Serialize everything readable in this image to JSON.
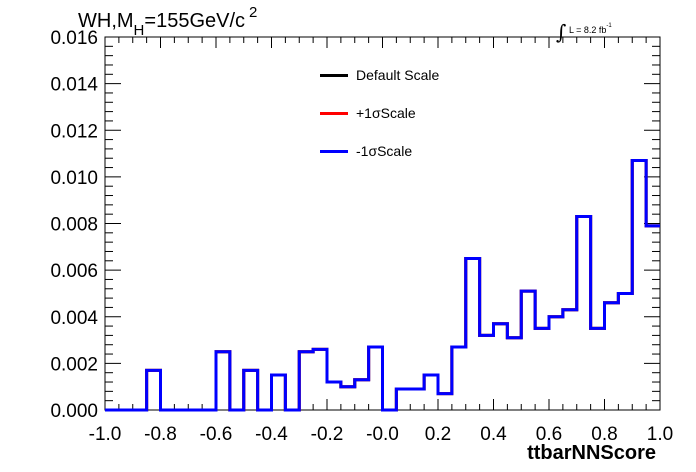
{
  "title": {
    "prefix": "WH,M",
    "subscript": "H",
    "value": "=155GeV/c",
    "superscript": "2"
  },
  "lumi": {
    "integral": "∫",
    "text": "L = 8.2 fb",
    "superscript": "-1"
  },
  "chart_data": {
    "type": "line",
    "xlabel": "ttbarNNScore",
    "ylabel": "",
    "xlim": [
      -1.0,
      1.0
    ],
    "ylim": [
      0.0,
      0.016
    ],
    "x_ticks": [
      "-1.0",
      "-0.8",
      "-0.6",
      "-0.4",
      "-0.2",
      "-0.0",
      "0.2",
      "0.4",
      "0.6",
      "0.8",
      "1.0"
    ],
    "y_ticks": [
      "0.000",
      "0.002",
      "0.004",
      "0.006",
      "0.008",
      "0.010",
      "0.012",
      "0.014",
      "0.016"
    ],
    "bin_edges": [
      -1.0,
      -0.95,
      -0.9,
      -0.85,
      -0.8,
      -0.75,
      -0.7,
      -0.65,
      -0.6,
      -0.55,
      -0.5,
      -0.45,
      -0.4,
      -0.35,
      -0.3,
      -0.25,
      -0.2,
      -0.15,
      -0.1,
      -0.05,
      0.0,
      0.05,
      0.1,
      0.15,
      0.2,
      0.25,
      0.3,
      0.35,
      0.4,
      0.45,
      0.5,
      0.55,
      0.6,
      0.65,
      0.7,
      0.75,
      0.8,
      0.85,
      0.9,
      0.95,
      1.0
    ],
    "series": [
      {
        "name": "Default Scale",
        "color": "#000000",
        "values": [
          0,
          0,
          0,
          0.0017,
          0,
          0,
          0,
          0,
          0.0025,
          0,
          0.0017,
          0,
          0.0015,
          0,
          0.0025,
          0.0026,
          0.0012,
          0.001,
          0.0013,
          0.0027,
          0,
          0.0009,
          0.0009,
          0.0015,
          0.0007,
          0.0027,
          0.0065,
          0.0032,
          0.0037,
          0.0031,
          0.0051,
          0.0035,
          0.004,
          0.0043,
          0.0083,
          0.0035,
          0.0046,
          0.005,
          0.0107,
          0.0079
        ]
      },
      {
        "name": "+1σScale",
        "color": "#ff0000",
        "values": [
          0,
          0,
          0,
          0.0017,
          0,
          0,
          0,
          0,
          0.0025,
          0,
          0.0017,
          0,
          0.0015,
          0,
          0.0025,
          0.0026,
          0.0012,
          0.001,
          0.0013,
          0.0027,
          0,
          0.0009,
          0.0009,
          0.0015,
          0.0007,
          0.0027,
          0.0065,
          0.0032,
          0.0037,
          0.0031,
          0.0051,
          0.0035,
          0.004,
          0.0043,
          0.0083,
          0.0035,
          0.0046,
          0.005,
          0.0107,
          0.0079
        ]
      },
      {
        "name": "-1σScale",
        "color": "#0000ff",
        "values": [
          0,
          0,
          0,
          0.0017,
          0,
          0,
          0,
          0,
          0.0025,
          0,
          0.0017,
          0,
          0.0015,
          0,
          0.0025,
          0.0026,
          0.0012,
          0.001,
          0.0013,
          0.0027,
          0,
          0.0009,
          0.0009,
          0.0015,
          0.0007,
          0.0027,
          0.0065,
          0.0032,
          0.0037,
          0.0031,
          0.0051,
          0.0035,
          0.004,
          0.0043,
          0.0083,
          0.0035,
          0.0046,
          0.005,
          0.0107,
          0.0079
        ]
      }
    ],
    "legend_position": "top-center"
  }
}
